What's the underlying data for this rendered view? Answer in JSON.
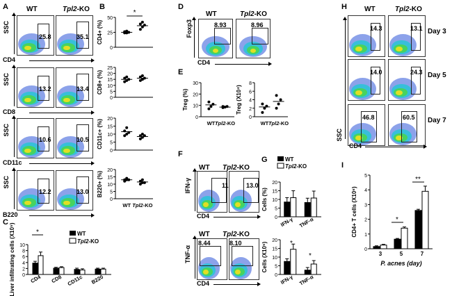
{
  "panel_letters": {
    "A": "A",
    "B": "B",
    "C": "C",
    "D": "D",
    "E": "E",
    "F": "F",
    "G": "G",
    "H": "H",
    "I": "I"
  },
  "groups": {
    "wt": "WT",
    "ko_italic": "Tpl2",
    "ko_suffix": "-KO"
  },
  "panel_a": {
    "rows": [
      {
        "y_axis": "SSC",
        "x_axis": "CD4",
        "wt_pct": "25.8",
        "ko_pct": "35.1"
      },
      {
        "y_axis": "SSC",
        "x_axis": "CD8",
        "wt_pct": "13.2",
        "ko_pct": "13.4"
      },
      {
        "y_axis": "SSC",
        "x_axis": "CD11c",
        "wt_pct": "10.6",
        "ko_pct": "10.5"
      },
      {
        "y_axis": "SSC",
        "x_axis": "B220",
        "wt_pct": "12.2",
        "ko_pct": "13.0"
      }
    ]
  },
  "panel_b": {
    "star": "*",
    "xtick_wt": "WT",
    "xtick_ko_italic": "Tpl2",
    "xtick_ko_suffix": "-KO"
  },
  "panel_d": {
    "y_axis": "Foxp3",
    "x_axis": "CD4",
    "wt_pct": "8.93",
    "ko_pct": "8.96"
  },
  "panel_f": {
    "rows": [
      {
        "y_axis": "IFN-γ",
        "x_axis": "CD4",
        "wt_pct": "11.2",
        "ko_pct": "13.0"
      },
      {
        "y_axis": "TNF-α",
        "x_axis": "CD4",
        "wt_pct": "8.44",
        "ko_pct": "8.10"
      }
    ]
  },
  "panel_h": {
    "rows": [
      {
        "wt_pct": "14.3",
        "ko_pct": "13.1",
        "day": "Day 3"
      },
      {
        "wt_pct": "14.0",
        "ko_pct": "24.3",
        "day": "Day 5"
      },
      {
        "wt_pct": "46.8",
        "ko_pct": "60.5",
        "day": "Day 7"
      }
    ],
    "y_axis": "SSC",
    "x_axis": "CD4"
  },
  "colors": {
    "black_bar": "#000000",
    "white_bar": "#ffffff",
    "facs_blue": "#2d56d8",
    "facs_cyan": "#22c7d6",
    "facs_green": "#49d64a",
    "facs_yellow": "#f2e01e"
  },
  "chart_data": [
    {
      "id": "B1",
      "type": "scatter",
      "ylabel": "CD4+ (%)",
      "ylim": [
        0,
        50
      ],
      "yticks": [
        "0",
        "25",
        "50"
      ],
      "categories": [
        "WT",
        "Tpl2-KO"
      ],
      "points": [
        [
          24,
          24,
          25,
          26,
          27
        ],
        [
          30,
          34,
          37,
          39,
          42
        ]
      ],
      "mean": [
        25,
        36
      ],
      "annotations": [
        "*"
      ]
    },
    {
      "id": "B2",
      "type": "scatter",
      "ylabel": "CD8+ (%)",
      "ylim": [
        0,
        25
      ],
      "yticks": [
        "0",
        "5",
        "10",
        "15",
        "20",
        "25"
      ],
      "categories": [
        "WT",
        "Tpl2-KO"
      ],
      "points": [
        [
          13,
          14,
          15,
          16,
          17
        ],
        [
          14,
          15,
          16,
          17,
          18
        ]
      ],
      "mean": [
        15,
        16
      ]
    },
    {
      "id": "B3",
      "type": "scatter",
      "ylabel": "CD11c+ (%)",
      "ylim": [
        0,
        20
      ],
      "yticks": [
        "0",
        "5",
        "10",
        "15",
        "20"
      ],
      "categories": [
        "WT",
        "Tpl2-KO"
      ],
      "points": [
        [
          9,
          10,
          11,
          12,
          14
        ],
        [
          7,
          8,
          9,
          9,
          10
        ]
      ],
      "mean": [
        11.5,
        8.5
      ]
    },
    {
      "id": "B4",
      "type": "scatter",
      "ylabel": "B220+ (%)",
      "ylim": [
        0,
        20
      ],
      "yticks": [
        "0",
        "5",
        "10",
        "15",
        "20"
      ],
      "categories": [
        "WT",
        "Tpl2-KO"
      ],
      "points": [
        [
          12,
          13,
          13,
          13,
          14
        ],
        [
          10,
          11,
          11,
          12,
          13
        ]
      ],
      "mean": [
        13,
        11.5
      ]
    },
    {
      "id": "C",
      "type": "bar",
      "ylabel": "Liver infiltrating cells (X10⁵)",
      "ylim": [
        0,
        10
      ],
      "yticks": [
        "0",
        "2",
        "4",
        "6",
        "8",
        "10"
      ],
      "categories": [
        "CD4",
        "CD8",
        "CD11c",
        "B220"
      ],
      "series": [
        {
          "name": "WT",
          "values": [
            3.8,
            2.1,
            1.7,
            1.8
          ],
          "errors": [
            0.6,
            0.3,
            0.4,
            0.3
          ]
        },
        {
          "name": "Tpl2-KO",
          "values": [
            6.3,
            2.3,
            1.5,
            1.8
          ],
          "errors": [
            1.2,
            0.3,
            0.4,
            0.3
          ]
        }
      ],
      "annotations": [
        "*"
      ]
    },
    {
      "id": "E1",
      "type": "scatter",
      "ylabel": "Treg (%)",
      "ylim": [
        0,
        30
      ],
      "yticks": [
        "0",
        "10",
        "20",
        "30"
      ],
      "categories": [
        "WT",
        "Tpl2-KO"
      ],
      "points": [
        [
          7,
          9,
          11,
          13
        ],
        [
          8,
          8.5,
          9,
          9
        ]
      ],
      "mean": [
        10.5,
        8.5
      ]
    },
    {
      "id": "E2",
      "type": "scatter",
      "ylabel": "Treg (X10⁴)",
      "ylim": [
        0,
        8
      ],
      "yticks": [
        "0",
        "2",
        "4",
        "6",
        "8"
      ],
      "categories": [
        "WT",
        "Tpl2-KO"
      ],
      "points": [
        [
          1,
          2,
          2.5,
          3
        ],
        [
          2,
          3,
          4,
          5
        ]
      ],
      "mean": [
        2.3,
        3.6
      ]
    },
    {
      "id": "G1",
      "type": "bar",
      "ylabel": "Cells (%)",
      "ylim": [
        0,
        20
      ],
      "yticks": [
        "0",
        "5",
        "10",
        "15",
        "20"
      ],
      "categories": [
        "IFN-γ",
        "TNF-α"
      ],
      "series": [
        {
          "name": "WT",
          "values": [
            8.5,
            8.2
          ],
          "errors": [
            2.5,
            2.5
          ]
        },
        {
          "name": "Tpl2-KO",
          "values": [
            11,
            10.8
          ],
          "errors": [
            4,
            4
          ]
        }
      ]
    },
    {
      "id": "G2",
      "type": "bar",
      "ylabel": "Cells (X10⁵)",
      "ylim": [
        0,
        20
      ],
      "yticks": [
        "0",
        "5",
        "10",
        "15",
        "20"
      ],
      "categories": [
        "IFN-γ",
        "TNF-α"
      ],
      "series": [
        {
          "name": "WT",
          "values": [
            7.5,
            2.5
          ],
          "errors": [
            1.5,
            1.5
          ]
        },
        {
          "name": "Tpl2-KO",
          "values": [
            14.5,
            6
          ],
          "errors": [
            3,
            2
          ]
        }
      ],
      "annotations": [
        "*",
        "*"
      ]
    },
    {
      "id": "I",
      "type": "bar",
      "title": "",
      "ylabel": "CD4+ T cells (X10⁶)",
      "xlabel": "P. acnes (day)",
      "ylim": [
        0,
        5
      ],
      "yticks": [
        "0",
        "1",
        "2",
        "3",
        "4",
        "5"
      ],
      "categories": [
        "3",
        "5",
        "7"
      ],
      "series": [
        {
          "name": "WT",
          "values": [
            0.15,
            0.65,
            2.6
          ],
          "errors": [
            0.05,
            0.05,
            0.08
          ]
        },
        {
          "name": "Tpl2-KO",
          "values": [
            0.25,
            1.4,
            3.9
          ],
          "errors": [
            0.05,
            0.08,
            0.35
          ]
        }
      ],
      "annotations": [
        "*",
        "**"
      ]
    }
  ]
}
